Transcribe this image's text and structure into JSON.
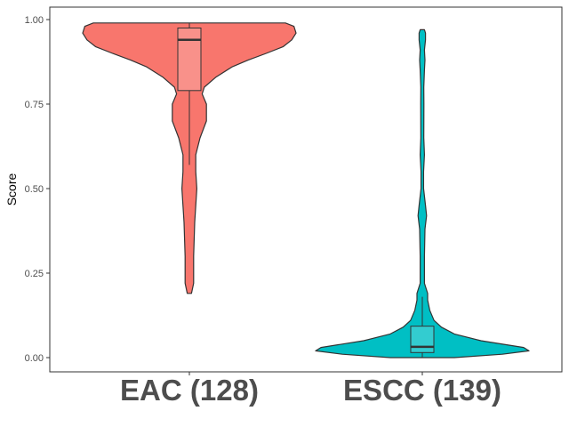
{
  "chart_data": {
    "type": "violin",
    "title": "",
    "xlabel": "",
    "ylabel": "Score",
    "ylim": [
      0,
      1
    ],
    "yticks": [
      0.0,
      0.25,
      0.5,
      0.75,
      1.0
    ],
    "ytick_labels": [
      "0.00",
      "0.25",
      "0.50",
      "0.75",
      "1.00"
    ],
    "grid": false,
    "legend": "none",
    "categories": [
      "EAC (128)",
      "ESCC (139)"
    ],
    "series": [
      {
        "category": "EAC (128)",
        "color": "#F8766D",
        "min": 0.19,
        "max": 0.99,
        "box": {
          "q1": 0.79,
          "median": 0.94,
          "q3": 0.975,
          "whisker_low": 0.57,
          "whisker_high": 0.99
        },
        "density": [
          [
            0.19,
            0.02
          ],
          [
            0.22,
            0.04
          ],
          [
            0.3,
            0.04
          ],
          [
            0.4,
            0.05
          ],
          [
            0.45,
            0.06
          ],
          [
            0.5,
            0.07
          ],
          [
            0.55,
            0.06
          ],
          [
            0.6,
            0.06
          ],
          [
            0.65,
            0.1
          ],
          [
            0.7,
            0.16
          ],
          [
            0.75,
            0.16
          ],
          [
            0.78,
            0.12
          ],
          [
            0.8,
            0.14
          ],
          [
            0.83,
            0.25
          ],
          [
            0.86,
            0.4
          ],
          [
            0.88,
            0.55
          ],
          [
            0.9,
            0.72
          ],
          [
            0.92,
            0.88
          ],
          [
            0.94,
            0.96
          ],
          [
            0.96,
            1.0
          ],
          [
            0.98,
            0.98
          ],
          [
            0.99,
            0.9
          ]
        ]
      },
      {
        "category": "ESCC (139)",
        "color": "#00BFC4",
        "min": 0.0,
        "max": 0.97,
        "box": {
          "q1": 0.015,
          "median": 0.032,
          "q3": 0.093,
          "whisker_low": 0.0,
          "whisker_high": 0.18
        },
        "density": [
          [
            0.0,
            0.3
          ],
          [
            0.01,
            0.75
          ],
          [
            0.02,
            1.0
          ],
          [
            0.03,
            0.95
          ],
          [
            0.05,
            0.55
          ],
          [
            0.07,
            0.3
          ],
          [
            0.09,
            0.18
          ],
          [
            0.11,
            0.11
          ],
          [
            0.14,
            0.07
          ],
          [
            0.17,
            0.05
          ],
          [
            0.19,
            0.05
          ],
          [
            0.22,
            0.02
          ],
          [
            0.3,
            0.02
          ],
          [
            0.38,
            0.025
          ],
          [
            0.42,
            0.04
          ],
          [
            0.45,
            0.03
          ],
          [
            0.5,
            0.012
          ],
          [
            0.55,
            0.012
          ],
          [
            0.6,
            0.02
          ],
          [
            0.65,
            0.014
          ],
          [
            0.75,
            0.015
          ],
          [
            0.8,
            0.014
          ],
          [
            0.85,
            0.02
          ],
          [
            0.88,
            0.025
          ],
          [
            0.91,
            0.02
          ],
          [
            0.94,
            0.03
          ],
          [
            0.96,
            0.03
          ],
          [
            0.97,
            0.02
          ]
        ]
      }
    ]
  }
}
